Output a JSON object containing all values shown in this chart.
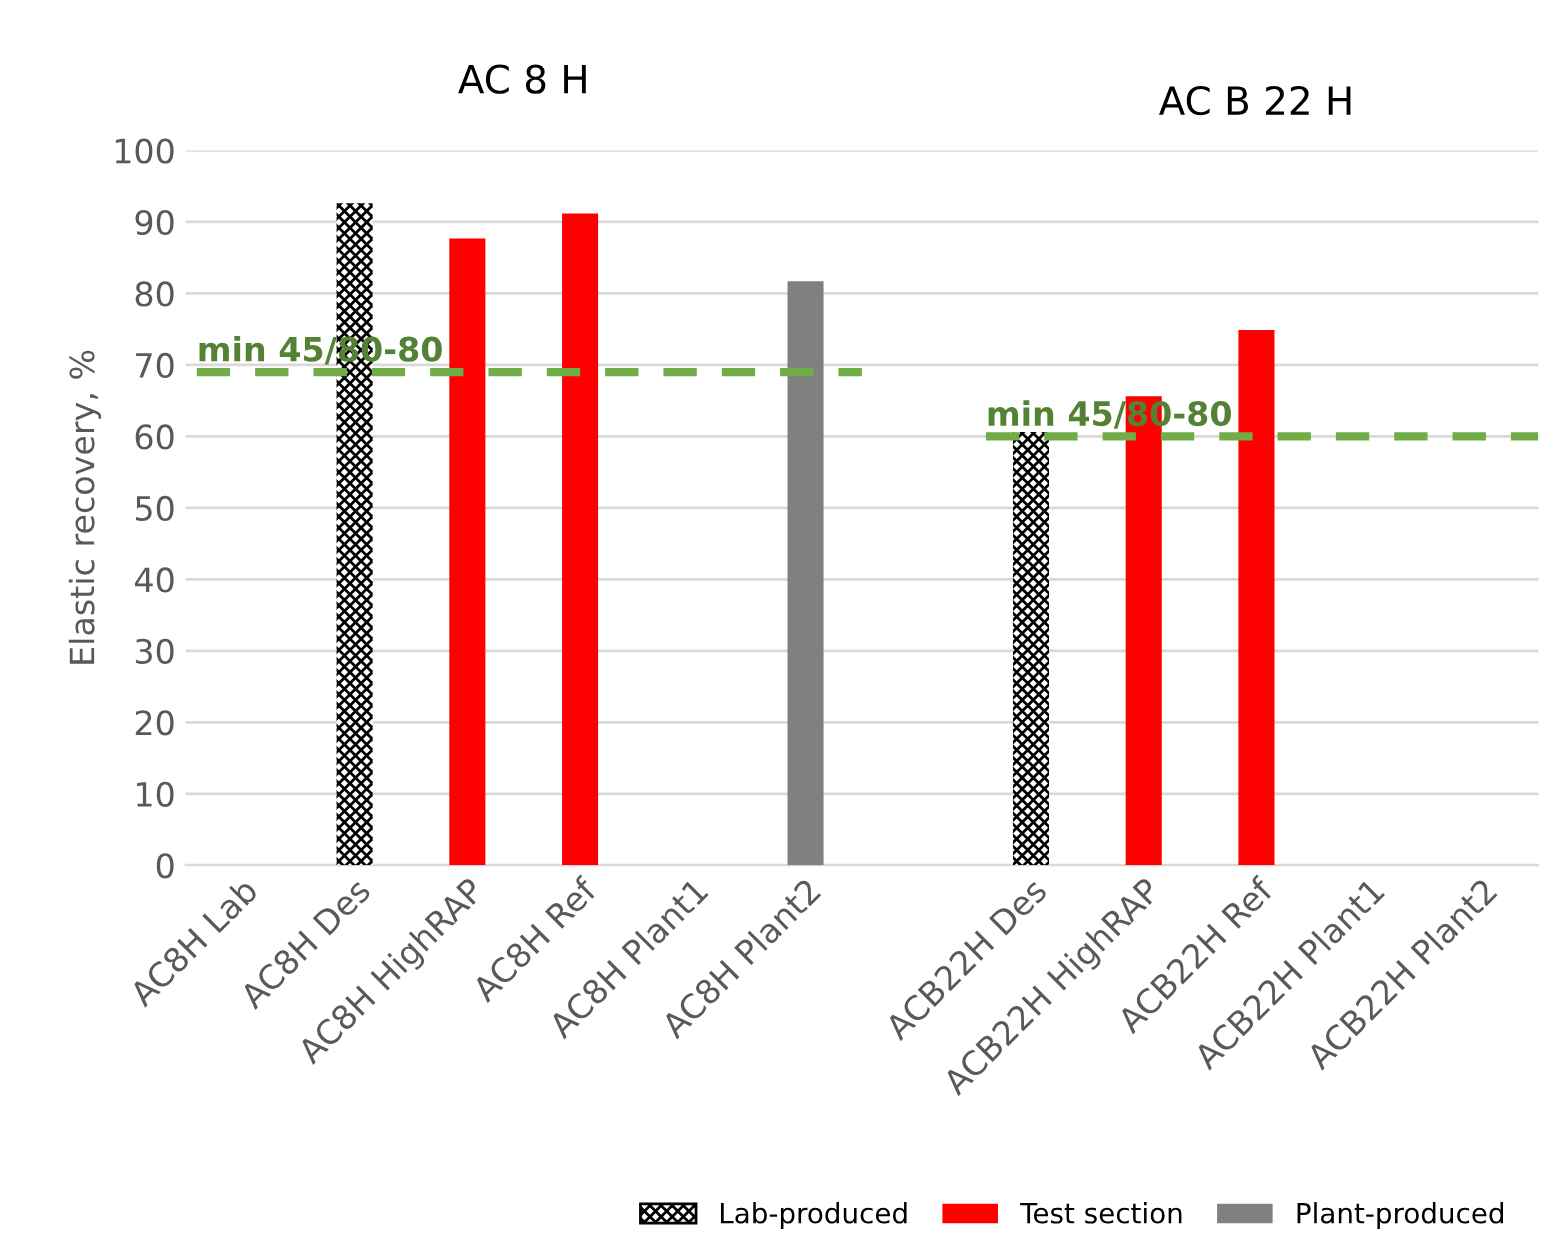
{
  "chart_data": {
    "type": "bar",
    "ylabel": "Elastic recovery, %",
    "categories": [
      "AC8H Lab",
      "AC8H Des",
      "AC8H HighRAP",
      "AC8H Ref",
      "AC8H Plant1",
      "AC8H Plant2",
      null,
      "ACB22H Des",
      "ACB22H HighRAP",
      "ACB22H Ref",
      "ACB22H Plant1",
      "ACB22H Plant2"
    ],
    "series": [
      {
        "name": "Lab-produced",
        "color": "#000000",
        "values": [
          null,
          92.6,
          null,
          null,
          null,
          null,
          null,
          60.6,
          null,
          null,
          null,
          null
        ]
      },
      {
        "name": "Test section",
        "color": "#ff0000",
        "values": [
          null,
          null,
          87.7,
          91.2,
          null,
          null,
          null,
          null,
          65.6,
          74.9,
          null,
          null
        ]
      },
      {
        "name": "Plant-produced",
        "color": "#808080",
        "values": [
          null,
          null,
          null,
          null,
          null,
          81.7,
          null,
          null,
          null,
          null,
          null,
          null
        ]
      }
    ],
    "ylim": [
      0,
      100
    ],
    "yticks": [
      0,
      10,
      20,
      30,
      40,
      50,
      60,
      70,
      80,
      90,
      100
    ],
    "grid": "y",
    "legend": "bottom",
    "ref_lines": [
      {
        "axis": "y",
        "value": 69,
        "label": "min 45/80-80",
        "color": "#70ad47",
        "line_style": "dashed"
      },
      {
        "axis": "y",
        "value": 60,
        "label": "min 45/80-80",
        "color": "#70ad47",
        "line_style": "dashed"
      }
    ],
    "annotations": [
      "AC 8 H",
      "AC B 22 H"
    ]
  }
}
